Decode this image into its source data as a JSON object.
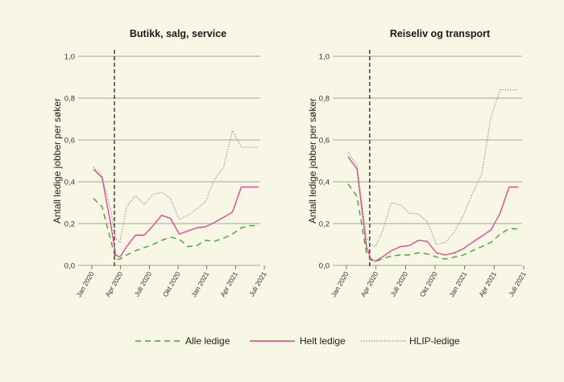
{
  "chart_data": [
    {
      "type": "line",
      "title": "Butikk, salg, service",
      "ylabel": "Antall ledige jobber per søker",
      "ylim": [
        0,
        1.0
      ],
      "yticks": [
        "0,0",
        "0,2",
        "0,4",
        "0,6",
        "0,8",
        "1,0"
      ],
      "yticks_values": [
        0,
        0.2,
        0.4,
        0.6,
        0.8,
        1.0
      ],
      "xticks": [
        "Jan 2020",
        "Apr 2020",
        "Juli 2020",
        "Okt 2020",
        "Jan 2021",
        "Apr 2021",
        "Juli 2021"
      ],
      "xticks_values": [
        "2020-01",
        "2020-04",
        "2020-07",
        "2020-10",
        "2021-01",
        "2021-04",
        "2021-07"
      ],
      "xlim": [
        "2020-01",
        "2021-07"
      ],
      "marker_line_x": "2020-03-12",
      "x": [
        "2020-01-06",
        "2020-02-03",
        "2020-03-02",
        "2020-03-16",
        "2020-03-30",
        "2020-04-20",
        "2020-05-18",
        "2020-06-15",
        "2020-07-13",
        "2020-08-10",
        "2020-09-07",
        "2020-10-05",
        "2020-11-02",
        "2020-11-30",
        "2020-12-28",
        "2021-01-25",
        "2021-02-22",
        "2021-03-22",
        "2021-04-19",
        "2021-05-17",
        "2021-06-14"
      ],
      "series": [
        {
          "name": "Alle ledige",
          "values": [
            0.32,
            0.28,
            0.11,
            0.03,
            0.03,
            0.05,
            0.07,
            0.085,
            0.1,
            0.12,
            0.135,
            0.125,
            0.09,
            0.095,
            0.12,
            0.115,
            0.13,
            0.15,
            0.18,
            0.19,
            0.19
          ]
        },
        {
          "name": "Helt ledige",
          "values": [
            0.46,
            0.42,
            0.18,
            0.05,
            0.04,
            0.09,
            0.145,
            0.145,
            0.19,
            0.24,
            0.225,
            0.15,
            0.165,
            0.18,
            0.185,
            0.205,
            0.23,
            0.255,
            0.375,
            0.375,
            0.375
          ]
        },
        {
          "name": "HLIP-ledige",
          "values": [
            0.47,
            0.43,
            0.25,
            0.13,
            0.11,
            0.28,
            0.335,
            0.29,
            0.34,
            0.35,
            0.32,
            0.22,
            0.24,
            0.27,
            0.305,
            0.41,
            0.47,
            0.645,
            0.565,
            0.565,
            0.565
          ]
        }
      ]
    },
    {
      "type": "line",
      "title": "Reiseliv og transport",
      "ylabel": "Antall ledige jobber per søker",
      "ylim": [
        0,
        1.0
      ],
      "yticks": [
        "0,0",
        "0,2",
        "0,4",
        "0,6",
        "0,8",
        "1,0"
      ],
      "yticks_values": [
        0,
        0.2,
        0.4,
        0.6,
        0.8,
        1.0
      ],
      "xticks": [
        "Jan 2020",
        "Apr 2020",
        "Juli 2020",
        "Okt 2020",
        "Jan 2021",
        "Apr 2021",
        "Juli 2021"
      ],
      "xticks_values": [
        "2020-01",
        "2020-04",
        "2020-07",
        "2020-10",
        "2021-01",
        "2021-04",
        "2021-07"
      ],
      "xlim": [
        "2020-01",
        "2021-07"
      ],
      "marker_line_x": "2020-03-12",
      "x": [
        "2020-01-06",
        "2020-02-03",
        "2020-03-02",
        "2020-03-16",
        "2020-03-30",
        "2020-04-20",
        "2020-05-18",
        "2020-06-15",
        "2020-07-13",
        "2020-08-10",
        "2020-09-07",
        "2020-10-05",
        "2020-11-02",
        "2020-11-30",
        "2020-12-28",
        "2021-01-25",
        "2021-02-22",
        "2021-03-22",
        "2021-04-19",
        "2021-05-17",
        "2021-06-14"
      ],
      "series": [
        {
          "name": "Alle ledige",
          "values": [
            0.39,
            0.33,
            0.06,
            0.025,
            0.02,
            0.03,
            0.045,
            0.05,
            0.05,
            0.06,
            0.055,
            0.04,
            0.03,
            0.04,
            0.05,
            0.07,
            0.09,
            0.11,
            0.15,
            0.175,
            0.175
          ]
        },
        {
          "name": "Helt ledige",
          "values": [
            0.52,
            0.46,
            0.09,
            0.03,
            0.02,
            0.04,
            0.07,
            0.09,
            0.095,
            0.12,
            0.115,
            0.06,
            0.05,
            0.06,
            0.08,
            0.11,
            0.14,
            0.17,
            0.25,
            0.375,
            0.375
          ]
        },
        {
          "name": "HLIP-ledige",
          "values": [
            0.54,
            0.48,
            0.13,
            0.1,
            0.09,
            0.16,
            0.3,
            0.29,
            0.25,
            0.245,
            0.21,
            0.1,
            0.11,
            0.16,
            0.24,
            0.34,
            0.44,
            0.71,
            0.84,
            0.84,
            0.84
          ]
        }
      ]
    }
  ],
  "legend": {
    "placement": "bottom",
    "items": [
      {
        "label": "Alle ledige",
        "color": "#3aaa35",
        "style": "dashed"
      },
      {
        "label": "Helt ledige",
        "color": "#e63d8a",
        "style": "solid"
      },
      {
        "label": "HLIP-ledige",
        "color": "#8c8c8c",
        "style": "dotted"
      }
    ]
  },
  "colors": {
    "alle": "#3aaa35",
    "helt": "#e63d8a",
    "hlip": "#8c8c8c",
    "grid": "#8a8a7a",
    "marker_line": "#333333",
    "background": "#f8f6e4"
  }
}
